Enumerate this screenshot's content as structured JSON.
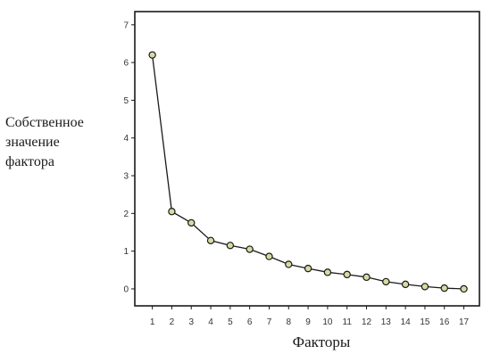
{
  "chart_data": {
    "type": "line",
    "title": "",
    "xlabel": "Факторы",
    "ylabel_lines": [
      "Собственное",
      "значение",
      "фактора"
    ],
    "x": [
      1,
      2,
      3,
      4,
      5,
      6,
      7,
      8,
      9,
      10,
      11,
      12,
      13,
      14,
      15,
      16,
      17
    ],
    "series": [
      {
        "values": [
          6.2,
          2.05,
          1.75,
          1.28,
          1.15,
          1.05,
          0.86,
          0.65,
          0.54,
          0.44,
          0.38,
          0.31,
          0.19,
          0.12,
          0.06,
          0.02,
          0.0
        ],
        "marker": "circle"
      }
    ],
    "yticks": [
      0,
      1,
      2,
      3,
      4,
      5,
      6,
      7
    ],
    "xticks": [
      1,
      2,
      3,
      4,
      5,
      6,
      7,
      8,
      9,
      10,
      11,
      12,
      13,
      14,
      15,
      16,
      17
    ],
    "ylim": [
      -0.45,
      7.35
    ],
    "xlim": [
      0.1,
      17.8
    ],
    "grid": false,
    "legend": "none",
    "colors": {
      "line": "#1a1a1a",
      "marker_fill": "#d9d9a3",
      "marker_stroke": "#1a1a1a",
      "frame": "#1a1a1a"
    }
  }
}
